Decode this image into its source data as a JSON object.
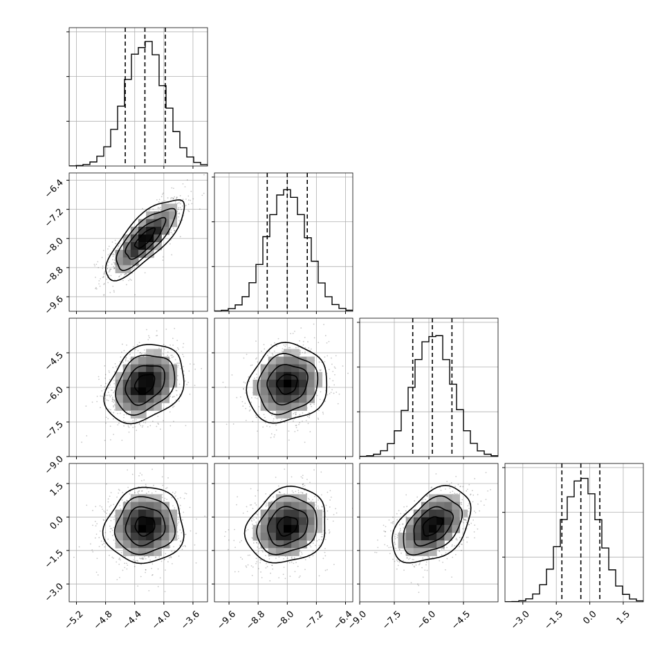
{
  "chart_data": {
    "type": "corner",
    "parameters": [
      {
        "range": [
          -5.3,
          -3.4
        ],
        "ticks": [
          -5.2,
          -4.8,
          -4.4,
          -4.0,
          -3.6
        ],
        "tick_labels": [
          "−5.2",
          "−4.8",
          "−4.4",
          "−4.0",
          "−3.6"
        ],
        "quantiles": [
          -4.53,
          -4.26,
          -3.98
        ],
        "median": -4.26,
        "sigma": 0.27,
        "hist_peak_norm": 1.0
      },
      {
        "range": [
          -10.0,
          -6.2
        ],
        "ticks": [
          -9.6,
          -8.8,
          -8.0,
          -7.2,
          -6.4
        ],
        "tick_labels": [
          "−9.6",
          "−8.8",
          "−8.0",
          "−7.2",
          "−6.4"
        ],
        "quantiles": [
          -8.55,
          -8.0,
          -7.45
        ],
        "median": -8.0,
        "sigma": 0.55,
        "hist_peak_norm": 1.0
      },
      {
        "range": [
          -9.0,
          -3.0
        ],
        "ticks": [
          -9.0,
          -7.5,
          -6.0,
          -4.5
        ],
        "tick_labels": [
          "−9.0",
          "−7.5",
          "−6.0",
          "−4.5"
        ],
        "quantiles": [
          -6.7,
          -5.85,
          -5.0
        ],
        "median": -5.85,
        "sigma": 0.85,
        "hist_peak_norm": 1.0
      },
      {
        "range": [
          -3.8,
          2.4
        ],
        "ticks": [
          -3.0,
          -1.5,
          0.0,
          1.5
        ],
        "tick_labels": [
          "−3.0",
          "−1.5",
          "0.0",
          "1.5"
        ],
        "quantiles": [
          -1.25,
          -0.4,
          0.45
        ],
        "median": -0.4,
        "sigma": 0.85,
        "hist_peak_norm": 1.0
      }
    ],
    "correlations": [
      {
        "i": 1,
        "j": 0,
        "rho": 0.78
      },
      {
        "i": 2,
        "j": 0,
        "rho": 0.3
      },
      {
        "i": 2,
        "j": 1,
        "rho": 0.12
      },
      {
        "i": 3,
        "j": 0,
        "rho": 0.05
      },
      {
        "i": 3,
        "j": 1,
        "rho": 0.18
      },
      {
        "i": 3,
        "j": 2,
        "rho": 0.42
      }
    ],
    "contour_levels_sigma": [
      0.5,
      1.0,
      1.5,
      2.0
    ],
    "grid": true,
    "legend": "none"
  }
}
